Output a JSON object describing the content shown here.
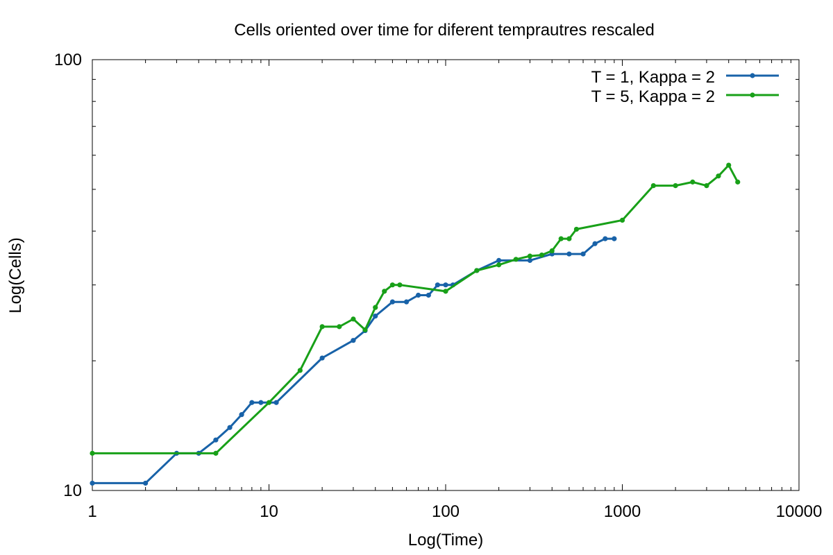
{
  "chart_data": {
    "type": "line",
    "title": "Cells oriented over time for diferent temprautres rescaled",
    "xlabel": "Log(Time)",
    "ylabel": "Log(Cells)",
    "xscale": "log",
    "yscale": "log",
    "xlim": [
      1,
      10000
    ],
    "ylim": [
      10,
      100
    ],
    "x_ticks": [
      1,
      10,
      100,
      1000,
      10000
    ],
    "x_tick_labels": [
      "1",
      "10",
      "100",
      "1000",
      "10000"
    ],
    "y_ticks": [
      10,
      100
    ],
    "y_tick_labels": [
      "10",
      "100"
    ],
    "grid": false,
    "legend_position": "top-right",
    "series": [
      {
        "name": "T = 1, Kappa = 2",
        "color": "#1862a8",
        "points": [
          [
            1,
            10.4
          ],
          [
            2,
            10.4
          ],
          [
            3,
            12.2
          ],
          [
            4,
            12.2
          ],
          [
            5,
            13.1
          ],
          [
            6,
            14.0
          ],
          [
            7,
            15.0
          ],
          [
            8,
            16.0
          ],
          [
            9,
            16.0
          ],
          [
            11,
            16.0
          ],
          [
            20,
            20.3
          ],
          [
            30,
            22.3
          ],
          [
            35,
            23.5
          ],
          [
            40,
            25.4
          ],
          [
            50,
            27.4
          ],
          [
            60,
            27.4
          ],
          [
            70,
            28.4
          ],
          [
            80,
            28.4
          ],
          [
            90,
            30.0
          ],
          [
            100,
            30.0
          ],
          [
            110,
            30.0
          ],
          [
            150,
            32.4
          ],
          [
            200,
            34.2
          ],
          [
            300,
            34.2
          ],
          [
            400,
            35.4
          ],
          [
            500,
            35.4
          ],
          [
            600,
            35.4
          ],
          [
            700,
            37.4
          ],
          [
            800,
            38.4
          ],
          [
            900,
            38.4
          ]
        ]
      },
      {
        "name": "T = 5, Kappa = 2",
        "color": "#18a018",
        "points": [
          [
            1,
            12.2
          ],
          [
            5,
            12.2
          ],
          [
            10,
            16.0
          ],
          [
            15,
            19.0
          ],
          [
            20,
            24.0
          ],
          [
            25,
            24.0
          ],
          [
            30,
            25.0
          ],
          [
            35,
            23.6
          ],
          [
            40,
            26.6
          ],
          [
            45,
            29.0
          ],
          [
            50,
            30.0
          ],
          [
            55,
            30.0
          ],
          [
            100,
            29.0
          ],
          [
            150,
            32.4
          ],
          [
            200,
            33.4
          ],
          [
            250,
            34.4
          ],
          [
            300,
            35.0
          ],
          [
            350,
            35.2
          ],
          [
            400,
            36.0
          ],
          [
            450,
            38.4
          ],
          [
            500,
            38.4
          ],
          [
            550,
            40.4
          ],
          [
            1000,
            42.4
          ],
          [
            1500,
            51.0
          ],
          [
            2000,
            51.0
          ],
          [
            2500,
            52.0
          ],
          [
            3000,
            51.0
          ],
          [
            3500,
            53.7
          ],
          [
            4000,
            56.9
          ],
          [
            4500,
            52.0
          ]
        ]
      }
    ]
  }
}
